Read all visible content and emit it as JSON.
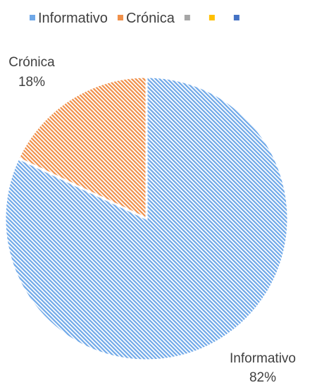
{
  "chart_data": {
    "type": "pie",
    "categories": [
      "Informativo",
      "Crónica"
    ],
    "values": [
      82,
      18
    ],
    "value_labels": [
      "82%",
      "18%"
    ],
    "legend": {
      "placement": "top",
      "entries": [
        {
          "label": "Informativo",
          "color": "#6fa8e8"
        },
        {
          "label": "Crónica",
          "color": "#f0904a"
        },
        {
          "label": "",
          "color": "#a6a6a6"
        },
        {
          "label": "",
          "color": "#ffc000"
        },
        {
          "label": "",
          "color": "#4472c4"
        }
      ]
    },
    "slice_colors": [
      "#6fa8e8",
      "#f0904a"
    ],
    "fill_pattern": "diagonal-hatch"
  }
}
